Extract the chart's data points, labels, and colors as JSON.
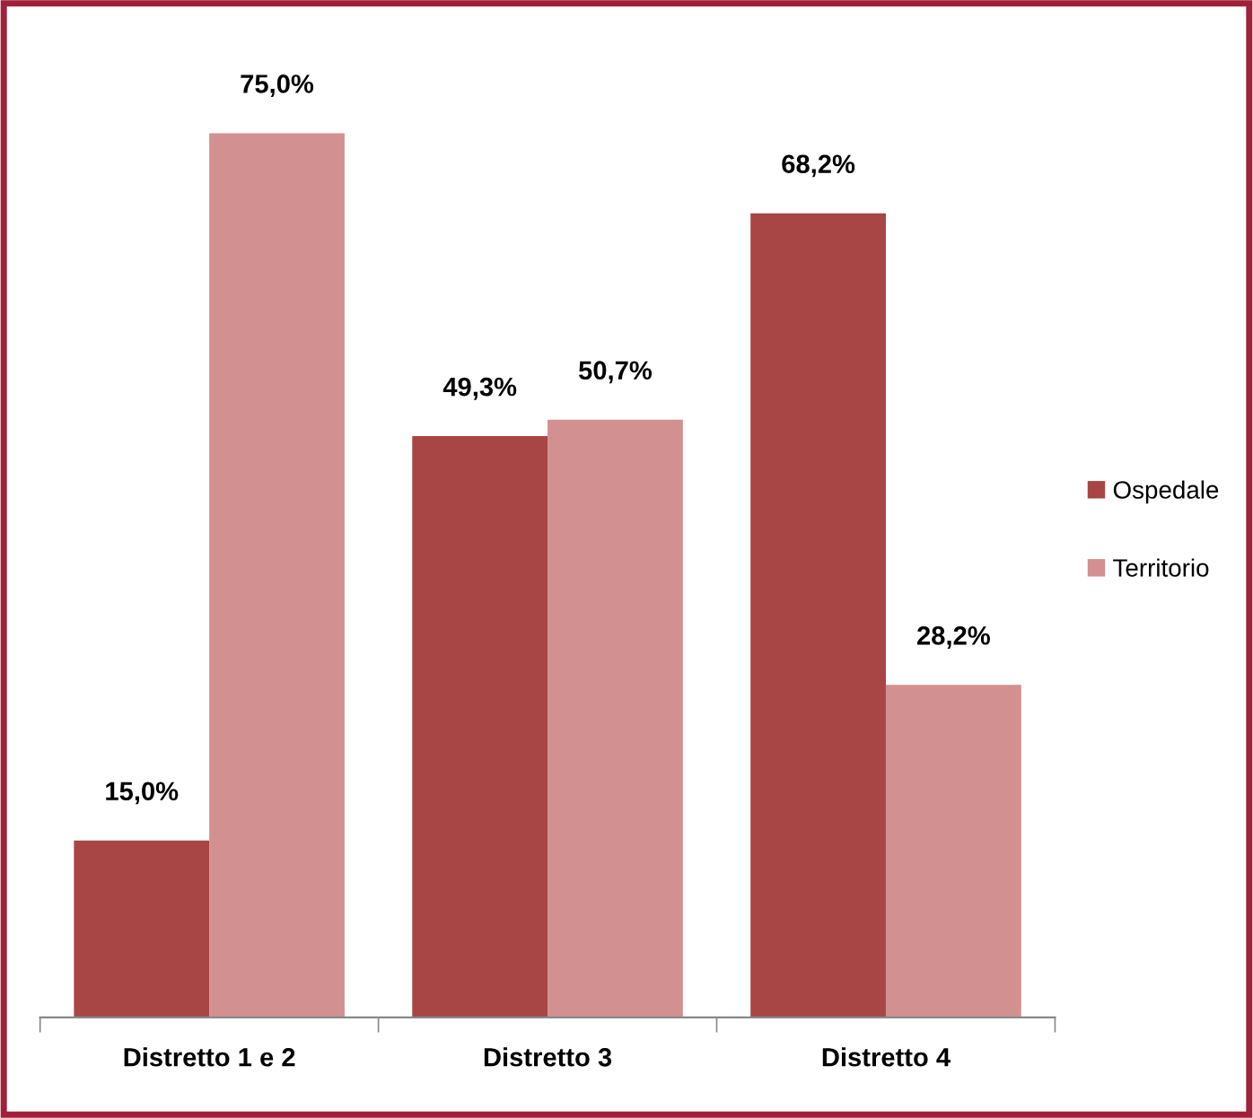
{
  "chart_data": {
    "type": "bar",
    "categories": [
      "Distretto 1 e 2",
      "Distretto 3",
      "Distretto 4"
    ],
    "series": [
      {
        "name": "Ospedale",
        "color": "#a84545",
        "values": [
          15.0,
          49.3,
          68.2
        ],
        "value_labels": [
          "15,0%",
          "49,3%",
          "68,2%"
        ]
      },
      {
        "name": "Territorio",
        "color": "#d29090",
        "values": [
          75.0,
          50.7,
          28.2
        ],
        "value_labels": [
          "75,0%",
          "50,7%",
          "28,2%"
        ]
      }
    ],
    "legend": "right",
    "grid": false
  }
}
